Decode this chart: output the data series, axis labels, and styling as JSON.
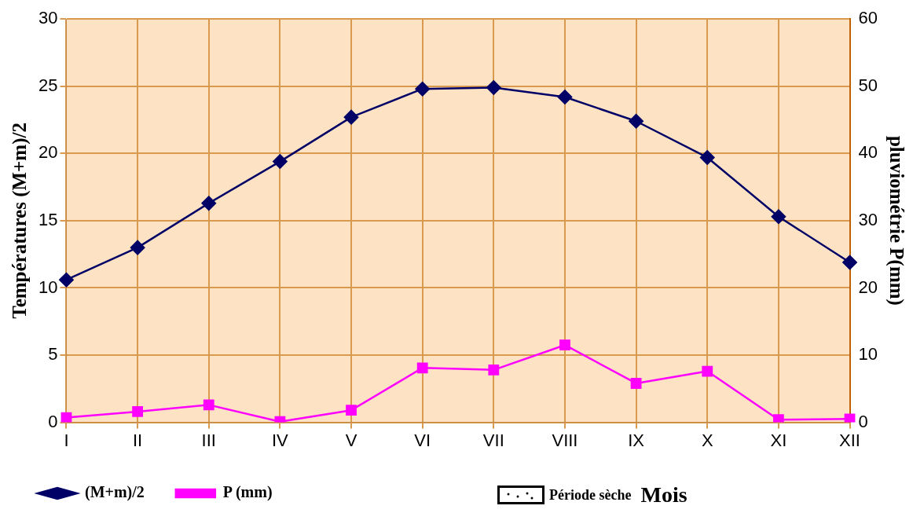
{
  "chart_data": {
    "type": "line",
    "categories": [
      "I",
      "II",
      "III",
      "IV",
      "V",
      "VI",
      "VII",
      "VIII",
      "IX",
      "X",
      "XI",
      "XII"
    ],
    "series": [
      {
        "name": "(M+m)/2",
        "color": "#000066",
        "marker": "diamond",
        "values": [
          10.6,
          13.0,
          16.3,
          19.4,
          22.7,
          24.8,
          24.9,
          24.2,
          22.4,
          19.7,
          15.3,
          11.9
        ]
      },
      {
        "name": "P (mm)",
        "color": "#ff00ff",
        "marker": "square",
        "axis": "y2",
        "values": [
          0.7,
          1.6,
          2.6,
          0.1,
          1.8,
          8.1,
          7.8,
          11.5,
          5.8,
          7.6,
          0.4,
          0.5
        ]
      }
    ],
    "ylabel": "Températures (M+m)/2",
    "y2label": "pluviométrie P(mm)",
    "xlabel": "Mois",
    "ylim": [
      0,
      30
    ],
    "yticks": [
      0,
      5,
      10,
      15,
      20,
      25,
      30
    ],
    "y2lim": [
      0,
      60
    ],
    "y2ticks": [
      0,
      10,
      20,
      30,
      40,
      50,
      60
    ],
    "grid": true,
    "legend": "bottom",
    "line_style": "solid",
    "annotations": [
      "Période sèche"
    ]
  }
}
